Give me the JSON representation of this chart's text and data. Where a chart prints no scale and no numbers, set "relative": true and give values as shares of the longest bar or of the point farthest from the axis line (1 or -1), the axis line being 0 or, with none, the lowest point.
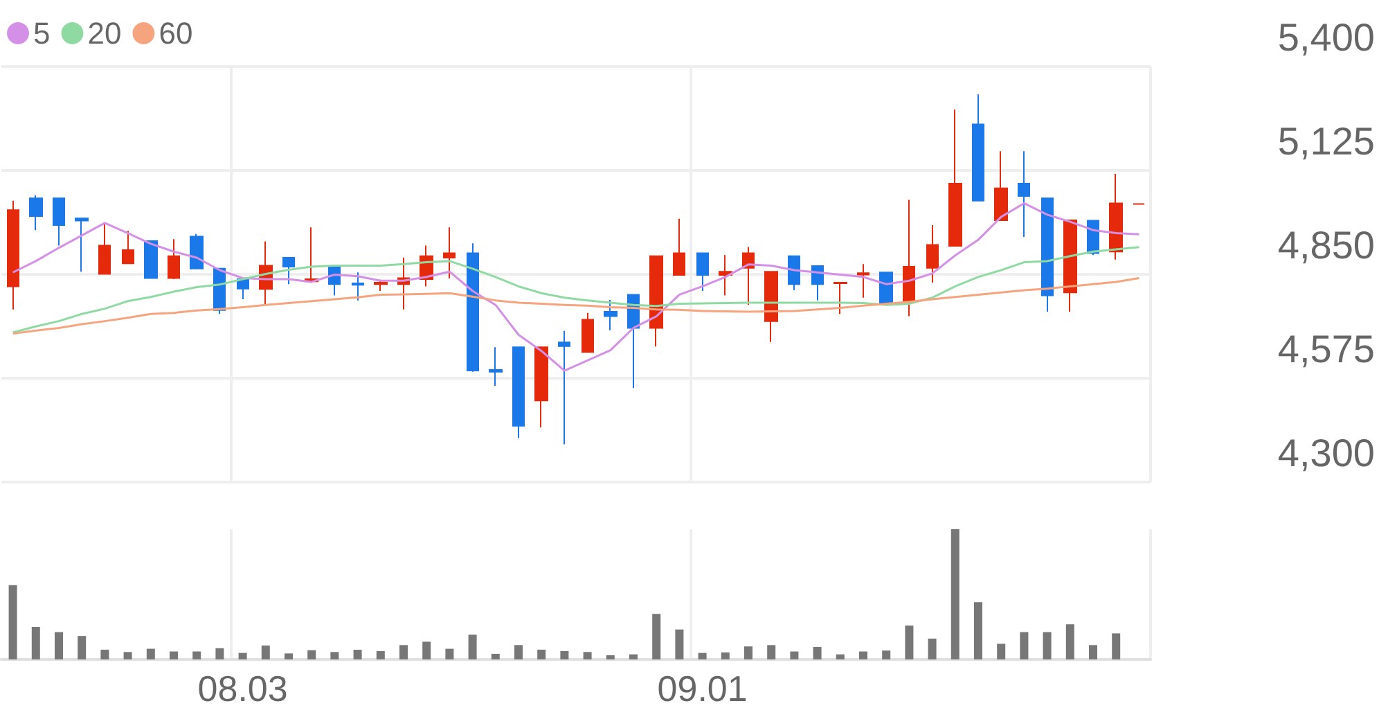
{
  "chart_data": [
    {
      "type": "candlestick",
      "categories": [
        null,
        null,
        null,
        null,
        null,
        null,
        null,
        null,
        null,
        null,
        "08.03",
        null,
        null,
        null,
        null,
        null,
        null,
        null,
        null,
        null,
        null,
        null,
        null,
        null,
        null,
        null,
        null,
        null,
        null,
        null,
        "09.01",
        null,
        null,
        null,
        null,
        null,
        null,
        null,
        null,
        null,
        null,
        null,
        null,
        null,
        null,
        null,
        null,
        null,
        null,
        null
      ],
      "ohlc": [
        [
          4818,
          5045,
          4757,
          5020
        ],
        [
          5051,
          5059,
          4967,
          5004
        ],
        [
          5051,
          5051,
          4926,
          4980
        ],
        [
          4998,
          4998,
          4857,
          4992
        ],
        [
          4851,
          4983,
          4851,
          4926
        ],
        [
          4879,
          4965,
          4879,
          4914
        ],
        [
          4938,
          4938,
          4840,
          4840
        ],
        [
          4840,
          4943,
          4837,
          4898
        ],
        [
          4950,
          4957,
          4865,
          4865
        ],
        [
          4865,
          4865,
          4745,
          4755
        ],
        [
          4837,
          4837,
          4784,
          4812
        ],
        [
          4811,
          4937,
          4769,
          4873
        ],
        [
          4894,
          4894,
          4824,
          4870
        ],
        [
          4831,
          4974,
          4828,
          4837
        ],
        [
          4872,
          4872,
          4794,
          4824
        ],
        [
          4826,
          4855,
          4781,
          4822
        ],
        [
          4824,
          4836,
          4806,
          4828
        ],
        [
          4824,
          4894,
          4757,
          4840
        ],
        [
          4837,
          4926,
          4818,
          4898
        ],
        [
          4894,
          4974,
          4839,
          4906
        ],
        [
          4906,
          4932,
          4592,
          4595
        ],
        [
          4597,
          4657,
          4555,
          4592
        ],
        [
          4657,
          4657,
          4417,
          4449
        ],
        [
          4516,
          4657,
          4445,
          4657
        ],
        [
          4670,
          4700,
          4400,
          4660
        ],
        [
          4644,
          4748,
          4644,
          4730
        ],
        [
          4751,
          4782,
          4702,
          4739
        ],
        [
          4796,
          4796,
          4549,
          4708
        ],
        [
          4708,
          4898,
          4659,
          4898
        ],
        [
          4848,
          4997,
          4848,
          4906
        ],
        [
          4906,
          4906,
          4806,
          4848
        ],
        [
          4848,
          4901,
          4794,
          4857
        ],
        [
          4867,
          4922,
          4769,
          4906
        ],
        [
          4726,
          4857,
          4671,
          4857
        ],
        [
          4898,
          4898,
          4808,
          4824
        ],
        [
          4872,
          4872,
          4781,
          4824
        ],
        [
          4826,
          4830,
          4745,
          4828
        ],
        [
          4849,
          4877,
          4788,
          4853
        ],
        [
          4855,
          4855,
          4769,
          4775
        ],
        [
          4779,
          5047,
          4739,
          4870
        ],
        [
          4867,
          4980,
          4828,
          4928
        ],
        [
          4925,
          5286,
          4925,
          5090
        ],
        [
          5247,
          5326,
          5045,
          5045
        ],
        [
          4993,
          5176,
          4993,
          5078
        ],
        [
          5090,
          5176,
          4949,
          5057
        ],
        [
          5051,
          5051,
          4751,
          4794
        ],
        [
          4802,
          4993,
          4751,
          4993
        ],
        [
          4992,
          4992,
          4901,
          4906
        ],
        [
          4910,
          5116,
          4889,
          5038
        ],
        [
          5036,
          5036,
          5036,
          5036
        ]
      ],
      "colors": [
        "#e52a0c",
        "#1a78e8",
        "#1a78e8",
        "#1a78e8",
        "#e52a0c",
        "#e52a0c",
        "#1a78e8",
        "#e52a0c",
        "#1a78e8",
        "#1a78e8",
        "#1a78e8",
        "#e52a0c",
        "#1a78e8",
        "#e52a0c",
        "#1a78e8",
        "#1a78e8",
        "#e52a0c",
        "#e52a0c",
        "#e52a0c",
        "#e52a0c",
        "#1a78e8",
        "#1a78e8",
        "#1a78e8",
        "#e52a0c",
        "#1a78e8",
        "#e52a0c",
        "#1a78e8",
        "#1a78e8",
        "#e52a0c",
        "#e52a0c",
        "#1a78e8",
        "#e52a0c",
        "#e52a0c",
        "#e52a0c",
        "#1a78e8",
        "#1a78e8",
        "#e52a0c",
        "#e52a0c",
        "#1a78e8",
        "#e52a0c",
        "#e52a0c",
        "#e52a0c",
        "#1a78e8",
        "#e52a0c",
        "#1a78e8",
        "#1a78e8",
        "#e52a0c",
        "#1a78e8",
        "#e52a0c",
        "#e52a0c"
      ],
      "series": [
        {
          "name": "5",
          "type": "line",
          "color": "#d48fe6",
          "values": [
            4855,
            4885,
            4920,
            4953,
            4986,
            4959,
            4931,
            4910,
            4894,
            4861,
            4840,
            4837,
            4837,
            4830,
            4849,
            4845,
            4833,
            4833,
            4843,
            4857,
            4806,
            4769,
            4690,
            4647,
            4595,
            4622,
            4649,
            4708,
            4739,
            4796,
            4818,
            4843,
            4876,
            4873,
            4861,
            4855,
            4849,
            4843,
            4824,
            4833,
            4852,
            4900,
            4941,
            5002,
            5038,
            5008,
            4989,
            4967,
            4959,
            4956
          ]
        },
        {
          "name": "20",
          "type": "line",
          "color": "#8fdaa2",
          "values": [
            4696,
            4712,
            4726,
            4745,
            4759,
            4779,
            4790,
            4804,
            4816,
            4823,
            4837,
            4851,
            4862,
            4870,
            4873,
            4873,
            4873,
            4877,
            4882,
            4885,
            4865,
            4843,
            4818,
            4800,
            4788,
            4781,
            4775,
            4769,
            4766,
            4772,
            4773,
            4774,
            4775,
            4775,
            4775,
            4775,
            4775,
            4774,
            4769,
            4772,
            4788,
            4818,
            4843,
            4861,
            4882,
            4885,
            4898,
            4910,
            4916,
            4922
          ]
        },
        {
          "name": "60",
          "type": "line",
          "color": "#f5a47e",
          "values": [
            4693,
            4701,
            4708,
            4718,
            4726,
            4735,
            4745,
            4748,
            4754,
            4758,
            4763,
            4769,
            4774,
            4779,
            4784,
            4789,
            4796,
            4797,
            4798,
            4800,
            4791,
            4781,
            4775,
            4772,
            4769,
            4767,
            4763,
            4761,
            4757,
            4756,
            4753,
            4752,
            4751,
            4752,
            4753,
            4757,
            4761,
            4767,
            4772,
            4777,
            4784,
            4790,
            4796,
            4802,
            4808,
            4812,
            4818,
            4824,
            4830,
            4840
          ]
        }
      ],
      "ylim": [
        4300,
        5400
      ],
      "yticks": [
        {
          "value": 4300,
          "label": "4,300"
        },
        {
          "value": 4575,
          "label": "4,575"
        },
        {
          "value": 4850,
          "label": "4,850"
        },
        {
          "value": 5125,
          "label": "5,125"
        },
        {
          "value": 5400,
          "label": "5,400"
        }
      ],
      "grid": true,
      "legend": "top left",
      "marker": "none",
      "tick_labels": "y"
    },
    {
      "type": "bar",
      "relative": true,
      "color": "#777777",
      "categories": [
        null,
        null,
        null,
        null,
        null,
        null,
        null,
        null,
        null,
        null,
        "08.03",
        null,
        null,
        null,
        null,
        null,
        null,
        null,
        null,
        null,
        null,
        null,
        null,
        null,
        null,
        null,
        null,
        null,
        null,
        null,
        "09.01",
        null,
        null,
        null,
        null,
        null,
        null,
        null,
        null,
        null,
        null,
        null,
        null,
        null,
        null,
        null,
        null,
        null,
        null,
        null
      ],
      "values": [
        0.57,
        0.25,
        0.21,
        0.18,
        0.075,
        0.057,
        0.082,
        0.061,
        0.061,
        0.086,
        0.05,
        0.107,
        0.046,
        0.071,
        0.057,
        0.075,
        0.064,
        0.11,
        0.136,
        0.082,
        0.19,
        0.043,
        0.11,
        0.075,
        0.064,
        0.057,
        0.032,
        0.039,
        0.35,
        0.23,
        0.05,
        0.054,
        0.1,
        0.11,
        0.061,
        0.096,
        0.039,
        0.061,
        0.068,
        0.26,
        0.16,
        1,
        0.44,
        0.12,
        0.21,
        0.21,
        0.27,
        0.11,
        0.2,
        null
      ],
      "grid": "x",
      "tick_labels": "x"
    }
  ]
}
